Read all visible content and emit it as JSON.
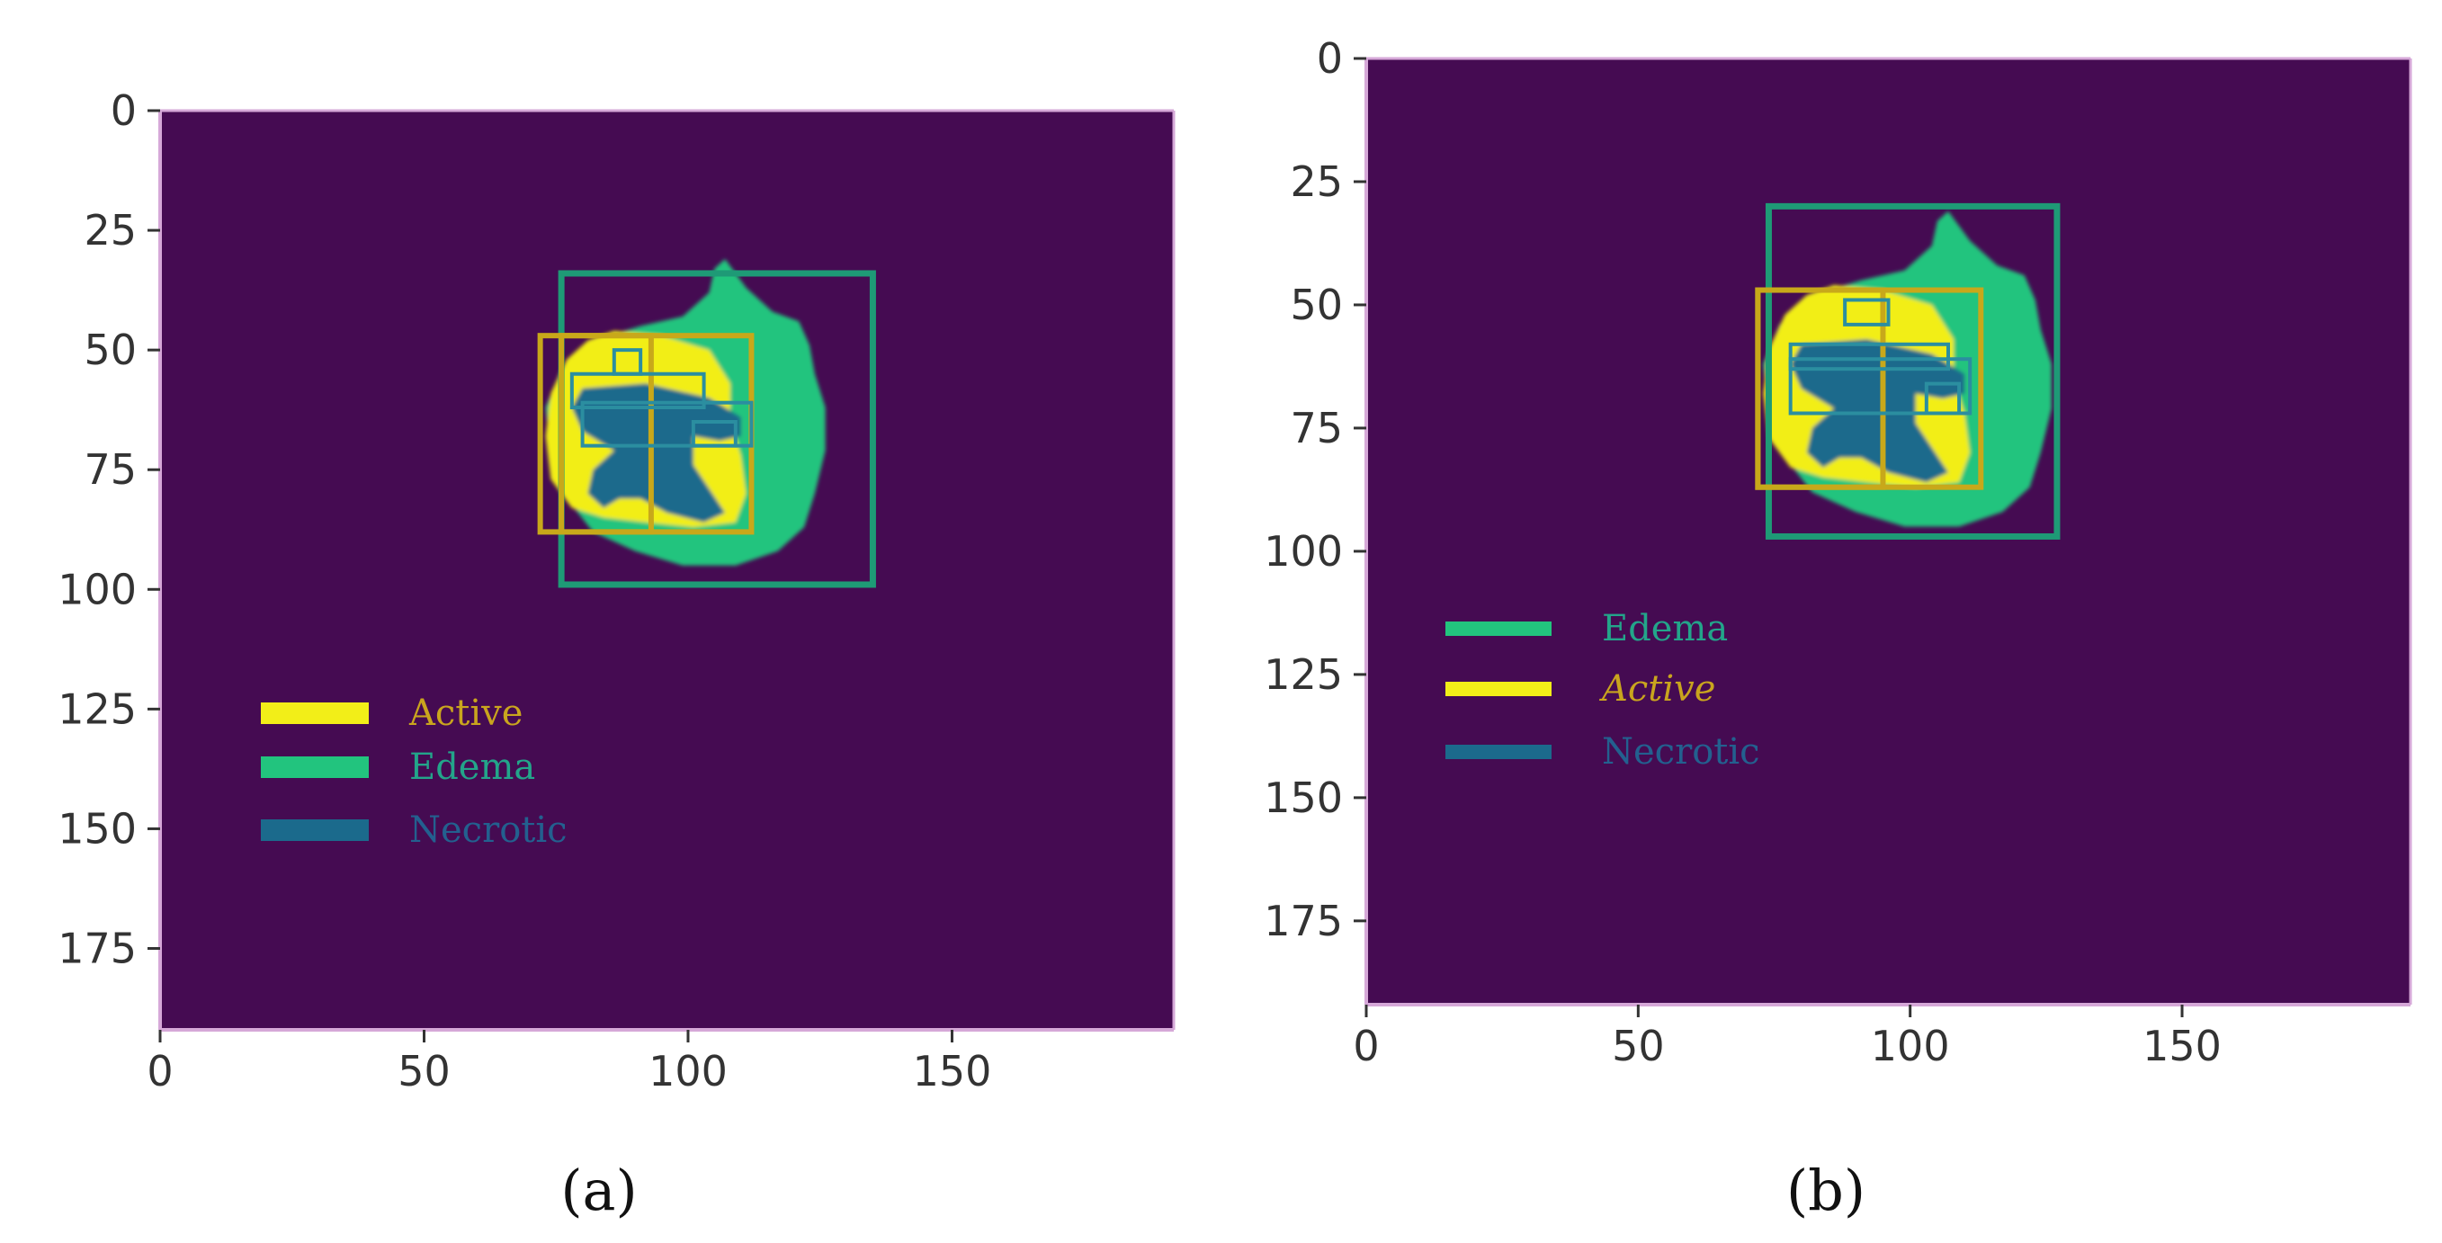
{
  "colors": {
    "background": "#450b52",
    "edema": "#22c47e",
    "active": "#f2ee18",
    "necrotic": "#1b6a8c",
    "edema_box": "#1e9a76",
    "active_box": "#c8a81a",
    "necrotic_box": "#2b8ea0",
    "active_label": "#c9a51e",
    "edema_label": "#23a58a",
    "necrotic_label": "#23608f"
  },
  "chart_data": [
    {
      "type": "heatmap",
      "caption": "(a)",
      "xlim": [
        0,
        192
      ],
      "ylim": [
        192,
        0
      ],
      "x_ticks": [
        0,
        50,
        100,
        150
      ],
      "y_ticks": [
        0,
        25,
        50,
        75,
        100,
        125,
        150,
        175
      ],
      "classes": [
        "Active",
        "Edema",
        "Necrotic"
      ],
      "boxes": [
        {
          "class": "Edema",
          "x": [
            76,
            135
          ],
          "y": [
            34,
            99
          ]
        },
        {
          "class": "Active",
          "x": [
            72,
            93
          ],
          "y": [
            47,
            88
          ]
        },
        {
          "class": "Active",
          "x": [
            76,
            112
          ],
          "y": [
            47,
            88
          ]
        },
        {
          "class": "Necrotic",
          "x": [
            78,
            103
          ],
          "y": [
            55,
            62
          ]
        },
        {
          "class": "Necrotic",
          "x": [
            80,
            112
          ],
          "y": [
            61,
            70
          ]
        },
        {
          "class": "Necrotic",
          "x": [
            86,
            91
          ],
          "y": [
            50,
            55
          ]
        },
        {
          "class": "Necrotic",
          "x": [
            101,
            109
          ],
          "y": [
            65,
            70
          ]
        }
      ],
      "legend": [
        {
          "label": "Active",
          "class": "active"
        },
        {
          "label": "Edema",
          "class": "edema"
        },
        {
          "label": "Necrotic",
          "class": "necrotic"
        }
      ]
    },
    {
      "type": "heatmap",
      "caption": "(b)",
      "xlim": [
        0,
        192
      ],
      "ylim": [
        192,
        0
      ],
      "x_ticks": [
        0,
        50,
        100,
        150
      ],
      "y_ticks": [
        0,
        25,
        50,
        75,
        100,
        125,
        150,
        175
      ],
      "classes": [
        "Edema",
        "Active",
        "Necrotic"
      ],
      "boxes": [
        {
          "class": "Edema",
          "x": [
            74,
            127
          ],
          "y": [
            30,
            97
          ]
        },
        {
          "class": "Active",
          "x": [
            72,
            113
          ],
          "y": [
            47,
            87
          ]
        },
        {
          "class": "Active",
          "x": [
            72,
            95
          ],
          "y": [
            47,
            87
          ]
        },
        {
          "class": "Necrotic",
          "x": [
            88,
            96
          ],
          "y": [
            49,
            54
          ]
        },
        {
          "class": "Necrotic",
          "x": [
            78,
            107
          ],
          "y": [
            58,
            63
          ]
        },
        {
          "class": "Necrotic",
          "x": [
            78,
            111
          ],
          "y": [
            61,
            72
          ]
        },
        {
          "class": "Necrotic",
          "x": [
            103,
            109
          ],
          "y": [
            66,
            72
          ]
        }
      ],
      "legend": [
        {
          "label": "Edema",
          "class": "edema"
        },
        {
          "label": "Active",
          "class": "active"
        },
        {
          "label": "Necrotic",
          "class": "necrotic"
        }
      ]
    }
  ]
}
